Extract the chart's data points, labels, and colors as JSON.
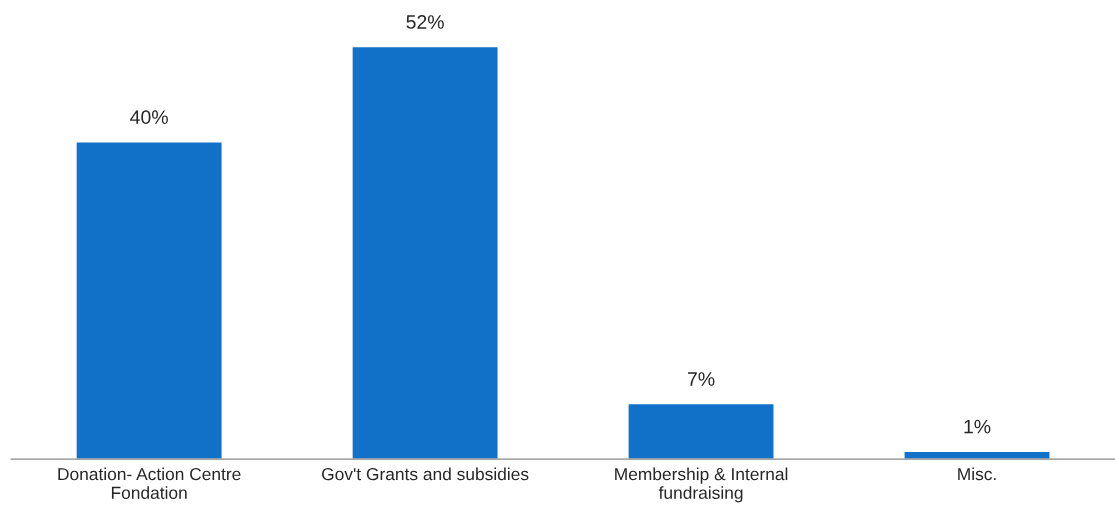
{
  "chart_data": {
    "type": "bar",
    "categories": [
      "Donation- Action Centre\nFondation",
      "Gov't Grants and subsidies",
      "Membership & Internal\nfundraising",
      "Misc."
    ],
    "values": [
      40,
      52,
      7,
      1
    ],
    "value_labels": [
      "40%",
      "52%",
      "7%",
      "1%"
    ],
    "color": "#1170c8",
    "grid": false,
    "legend": false
  }
}
